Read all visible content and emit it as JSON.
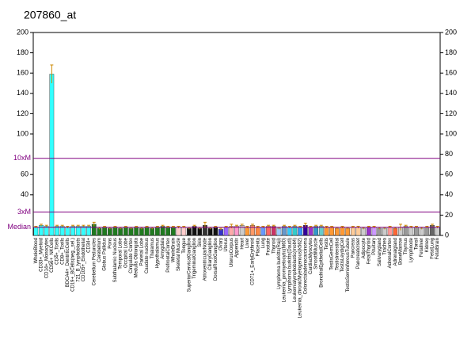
{
  "chart_data": {
    "type": "bar",
    "title": "207860_at",
    "categories": [
      "WholeBlood",
      "CD33+_Myeloid",
      "CD14+_Monocytes",
      "CD56+_NKCells",
      "CD4+_Tcells",
      "CD8+_Tcells",
      "BDCA4+_DentriticCells",
      "CD19+_BCells(neg._sel.)",
      "721_B_lymphoblasts",
      "CD105+_Endothelial",
      "CD34+",
      "Cerebellum Peduncles",
      "Cerebellum",
      "Globus Pallidus",
      "Pons",
      "Subthalamic Nucleus",
      "Temporal Lobe",
      "Occipital Lobe",
      "Cingulate Cortex",
      "Medulla Oblongata",
      "Parietal Lobe",
      "Caudate nucleus",
      "Thalamus",
      "Hypothalamus",
      "Amygdala",
      "PrefrontalCortex",
      "WholeBrain",
      "Skeletal Muscle",
      "Tongue",
      "SuperiorCervicalGanglion",
      "TrigeminalGanglion",
      "Skin",
      "AtrioventricularNode",
      "CiliaryGanglion",
      "DorsalRootGanglion",
      "Ovary",
      "Uterus",
      "UterusCorpus",
      "Appendix",
      "Heart",
      "Liver",
      "CD71+_EarlyErythroid",
      "Placenta",
      "Lung",
      "Prostate",
      "Thyroid",
      "Lymphoma burkitts(Raji)",
      "Leukemia_promyelocytic(hl60)",
      "Lymphoma burkitts(Daudi)",
      "Leukemialymphoblastic(molt4)",
      "Leukemia_chronicMyelogenous(k562)",
      "Colorectaladenocarcinoma",
      "CardiacMyocytes",
      "SmoothMuscle",
      "BronchialEpithelialCells",
      "Testis",
      "TestisGermCell",
      "TestisInterstitial",
      "TestisLeydigCell",
      "TestisSeminiferousTubule",
      "Pancreas",
      "PancreaticIslet",
      "Adipocyte",
      "FetalThyroid",
      "Pituitary",
      "Salivarygland",
      "Trachea",
      "AdrenalCortex",
      "Adrenalgland",
      "BoneMarrow",
      "Thymus",
      "Lymphnode",
      "Tonsil",
      "Fetalliver",
      "Kidney",
      "FetalLung",
      "FetalBrain"
    ],
    "values": [
      8,
      10,
      9,
      159,
      9,
      9,
      8,
      9,
      9,
      9,
      9,
      11,
      7,
      8,
      7,
      8,
      7,
      8,
      7,
      8,
      7,
      8,
      7,
      8,
      9,
      8,
      8,
      8,
      8,
      7,
      9,
      7,
      10,
      7,
      8,
      6,
      8,
      9,
      9,
      10,
      8,
      10,
      8,
      8,
      9,
      9,
      7,
      9,
      8,
      9,
      8,
      10,
      8,
      9,
      9,
      8,
      8,
      7,
      8,
      7,
      8,
      8,
      7,
      8,
      8,
      7,
      7,
      8,
      7,
      8,
      9,
      8,
      8,
      7,
      8,
      10,
      8
    ],
    "errors": [
      1,
      1,
      1,
      9,
      1,
      1,
      1,
      1,
      1,
      1,
      1,
      2,
      1,
      1,
      1,
      1,
      1,
      1,
      1,
      1,
      1,
      1,
      1,
      1,
      1,
      1,
      1,
      1,
      1,
      1,
      1,
      1,
      3,
      1,
      1,
      1,
      1,
      2,
      1,
      1,
      1,
      1,
      1,
      1,
      1,
      1,
      1,
      1,
      1,
      1,
      1,
      2,
      1,
      1,
      1,
      1,
      1,
      1,
      1,
      1,
      1,
      1,
      1,
      1,
      1,
      1,
      1,
      1,
      1,
      3,
      1,
      1,
      1,
      1,
      1,
      1,
      1
    ],
    "colors": [
      "#33ffff",
      "#33ffff",
      "#33ffff",
      "#33ffff",
      "#33ffff",
      "#33ffff",
      "#33ffff",
      "#33ffff",
      "#33ffff",
      "#33ffff",
      "#33ffff",
      "#1f7a1f",
      "#1f7a1f",
      "#1f7a1f",
      "#1f7a1f",
      "#1f7a1f",
      "#1f7a1f",
      "#1f7a1f",
      "#1f7a1f",
      "#1f7a1f",
      "#1f7a1f",
      "#1f7a1f",
      "#1f7a1f",
      "#1f7a1f",
      "#1f7a1f",
      "#1f7a1f",
      "#1f7a1f",
      "#ffcccc",
      "#ffcccc",
      "#111111",
      "#111111",
      "#111111",
      "#333333",
      "#111111",
      "#111111",
      "#3333cc",
      "#9966ff",
      "#ffaaaa",
      "#ff99cc",
      "#cccccc",
      "#ff9933",
      "#ff9966",
      "#ff8844",
      "#6699ff",
      "#ff6666",
      "#cc3366",
      "#99ccff",
      "#6699cc",
      "#33ccff",
      "#33cccc",
      "#3399ff",
      "#330099",
      "#9933cc",
      "#3399cc",
      "#66cccc",
      "#ff9933",
      "#ff9933",
      "#ff9933",
      "#ff9933",
      "#ff9933",
      "#ffcc99",
      "#ffcc99",
      "#cccccc",
      "#9933cc",
      "#cc99ff",
      "#999999",
      "#cccccc",
      "#ff9999",
      "#ff6633",
      "#cccccc",
      "#999999",
      "#cccccc",
      "#999999",
      "#cccccc",
      "#999999",
      "#666666",
      "#cccccc"
    ],
    "error_color": "#cc8800",
    "ylim": [
      0,
      200
    ],
    "yticks": [
      40,
      60,
      100,
      120,
      140,
      160,
      180,
      200
    ],
    "y2lim": [
      0,
      200
    ],
    "y2ticks": [
      0,
      20,
      40,
      60,
      80,
      100,
      120,
      140,
      160,
      180,
      200
    ],
    "reference_lines": [
      {
        "label": "10xM",
        "value": 76
      },
      {
        "label": "3xM",
        "value": 23
      },
      {
        "label": "Median",
        "value": 8
      }
    ],
    "reference_color": "#800080"
  }
}
